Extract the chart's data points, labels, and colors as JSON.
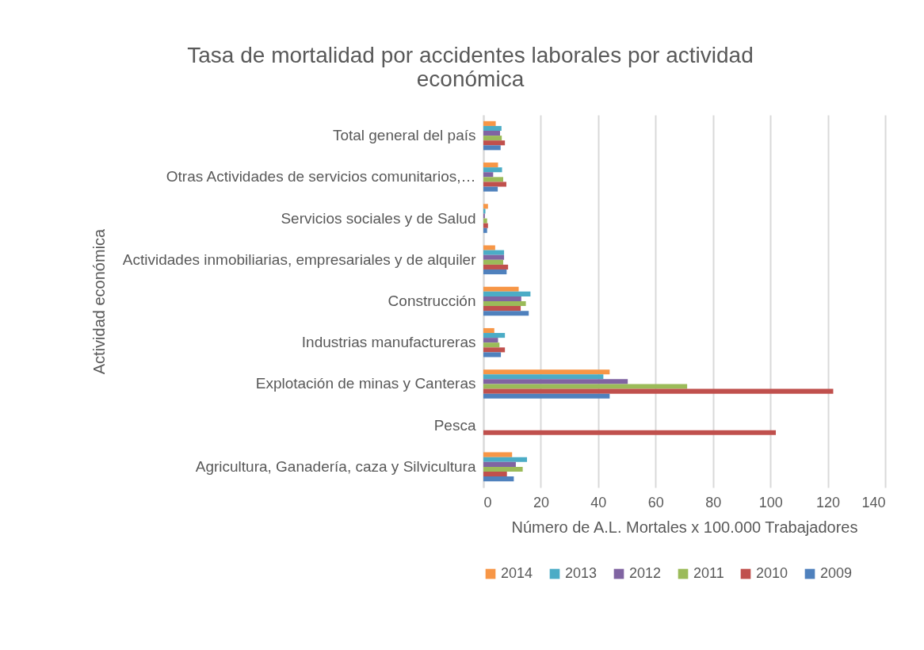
{
  "chart_data": {
    "type": "bar",
    "orientation": "horizontal",
    "title": "Tasa de mortalidad por accidentes laborales por actividad económica",
    "xlabel": "Número de A.L. Mortales x 100.000 Trabajadores",
    "ylabel": "Actividad económica",
    "categories": [
      "Total general del país",
      "Otras Actividades de servicios comunitarios,…",
      "Servicios sociales y de Salud",
      "Actividades inmobiliarias, empresariales y de alquiler",
      "Construcción",
      "Industrias manufactureras",
      "Explotación de minas y Canteras",
      "Pesca",
      "Agricultura, Ganadería, caza y Silvicultura"
    ],
    "series": [
      {
        "name": "2014",
        "color": "#f79646",
        "values": [
          4.3,
          5.1,
          1.6,
          4.1,
          12.3,
          3.8,
          44,
          null,
          10
        ]
      },
      {
        "name": "2013",
        "color": "#4bacc6",
        "values": [
          6.3,
          6.5,
          0.7,
          7.2,
          16.4,
          7.5,
          41.8,
          null,
          15.2
        ]
      },
      {
        "name": "2012",
        "color": "#8064a2",
        "values": [
          5.8,
          3.4,
          0.5,
          7.2,
          13.2,
          5.1,
          50.3,
          null,
          11.3
        ]
      },
      {
        "name": "2011",
        "color": "#9bbb59",
        "values": [
          6.4,
          6.9,
          1.3,
          6.9,
          14.8,
          5.6,
          71,
          null,
          13.7
        ]
      },
      {
        "name": "2010",
        "color": "#c0504d",
        "values": [
          7.5,
          8.0,
          1.6,
          8.6,
          13.0,
          7.5,
          121.9,
          101.9,
          8.2
        ]
      },
      {
        "name": "2009",
        "color": "#4f81bd",
        "values": [
          6.0,
          5.0,
          1.3,
          8.1,
          15.8,
          6.1,
          44,
          null,
          10.6
        ]
      }
    ],
    "xlim": [
      0,
      140
    ],
    "xticks": [
      0,
      20,
      40,
      60,
      80,
      100,
      120,
      140
    ],
    "grid": "x",
    "legend": "bottom"
  }
}
